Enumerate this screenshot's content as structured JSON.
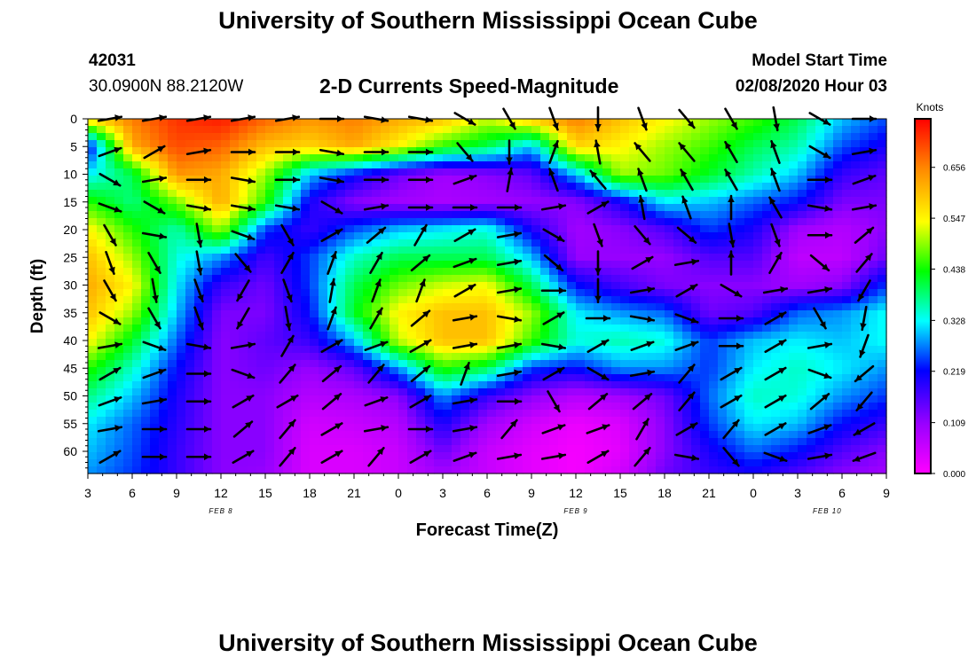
{
  "header": {
    "title": "University of Southern Mississippi Ocean Cube",
    "station_id": "42031",
    "location": "30.0900N 88.2120W",
    "product": "2-D Currents Speed-Magnitude",
    "model_label": "Model Start Time",
    "model_time": "02/08/2020 Hour 03"
  },
  "footer": {
    "title": "University of Southern Mississippi Ocean Cube"
  },
  "chart_data": {
    "type": "heatmap",
    "title": "2-D Currents Speed-Magnitude",
    "xlabel": "Forecast Time(Z)",
    "ylabel": "Depth (ft)",
    "x_tick_labels": [
      "3",
      "6",
      "9",
      "12",
      "15",
      "18",
      "21",
      "0",
      "3",
      "6",
      "9",
      "12",
      "15",
      "18",
      "21",
      "0",
      "3",
      "6",
      "9"
    ],
    "x_range_hours": [
      0,
      54
    ],
    "date_labels": [
      {
        "text": "FEB 8",
        "hour": 9
      },
      {
        "text": "FEB 9",
        "hour": 33
      },
      {
        "text": "FEB 10",
        "hour": 50
      }
    ],
    "y_tick_labels": [
      "0",
      "5",
      "10",
      "15",
      "20",
      "25",
      "30",
      "35",
      "40",
      "45",
      "50",
      "55",
      "60"
    ],
    "ylim": [
      64,
      0
    ],
    "colorbar": {
      "title": "Knots",
      "ticks": [
        "0.656",
        "0.547",
        "0.438",
        "0.328",
        "0.219",
        "0.109",
        "0.000"
      ],
      "range": [
        0.0,
        0.76
      ],
      "colors": [
        "#ff00ff",
        "#9900ff",
        "#0000ff",
        "#00ffff",
        "#00ff00",
        "#ffff00",
        "#ff8800",
        "#ff0000"
      ]
    },
    "speed_grid": {
      "x_hours": [
        0,
        3,
        6,
        9,
        12,
        15,
        18,
        21,
        24,
        27,
        30,
        33,
        36,
        39,
        42,
        45,
        48,
        51,
        54
      ],
      "depths_ft": [
        0,
        5,
        10,
        15,
        20,
        25,
        30,
        35,
        40,
        45,
        50,
        55,
        60,
        64
      ],
      "values": [
        [
          0.58,
          0.66,
          0.72,
          0.74,
          0.68,
          0.64,
          0.66,
          0.62,
          0.6,
          0.52,
          0.6,
          0.66,
          0.6,
          0.55,
          0.5,
          0.46,
          0.4,
          0.3,
          0.25
        ],
        [
          0.2,
          0.62,
          0.7,
          0.68,
          0.6,
          0.58,
          0.62,
          0.55,
          0.45,
          0.4,
          0.3,
          0.58,
          0.55,
          0.5,
          0.46,
          0.4,
          0.36,
          0.25,
          0.2
        ],
        [
          0.32,
          0.4,
          0.64,
          0.62,
          0.5,
          0.3,
          0.22,
          0.14,
          0.1,
          0.12,
          0.15,
          0.3,
          0.5,
          0.48,
          0.42,
          0.36,
          0.3,
          0.18,
          0.15
        ],
        [
          0.45,
          0.38,
          0.48,
          0.62,
          0.45,
          0.2,
          0.12,
          0.1,
          0.09,
          0.1,
          0.11,
          0.12,
          0.2,
          0.32,
          0.3,
          0.26,
          0.22,
          0.13,
          0.13
        ],
        [
          0.55,
          0.45,
          0.36,
          0.5,
          0.24,
          0.18,
          0.25,
          0.3,
          0.32,
          0.34,
          0.2,
          0.1,
          0.12,
          0.16,
          0.24,
          0.2,
          0.1,
          0.08,
          0.12
        ],
        [
          0.6,
          0.5,
          0.34,
          0.28,
          0.17,
          0.24,
          0.35,
          0.4,
          0.4,
          0.4,
          0.3,
          0.11,
          0.11,
          0.11,
          0.16,
          0.16,
          0.07,
          0.07,
          0.14
        ],
        [
          0.62,
          0.55,
          0.32,
          0.18,
          0.14,
          0.24,
          0.4,
          0.48,
          0.52,
          0.54,
          0.4,
          0.22,
          0.17,
          0.13,
          0.12,
          0.12,
          0.1,
          0.12,
          0.24
        ],
        [
          0.6,
          0.5,
          0.3,
          0.13,
          0.13,
          0.22,
          0.42,
          0.55,
          0.6,
          0.6,
          0.5,
          0.32,
          0.28,
          0.26,
          0.14,
          0.16,
          0.26,
          0.28,
          0.33
        ],
        [
          0.55,
          0.42,
          0.26,
          0.12,
          0.15,
          0.18,
          0.3,
          0.52,
          0.6,
          0.6,
          0.46,
          0.34,
          0.36,
          0.34,
          0.24,
          0.3,
          0.32,
          0.3,
          0.33
        ],
        [
          0.45,
          0.35,
          0.22,
          0.12,
          0.14,
          0.11,
          0.15,
          0.28,
          0.45,
          0.4,
          0.24,
          0.22,
          0.28,
          0.28,
          0.24,
          0.32,
          0.35,
          0.32,
          0.28
        ],
        [
          0.38,
          0.3,
          0.2,
          0.12,
          0.12,
          0.08,
          0.09,
          0.12,
          0.28,
          0.18,
          0.12,
          0.08,
          0.1,
          0.14,
          0.26,
          0.35,
          0.34,
          0.28,
          0.24
        ],
        [
          0.32,
          0.26,
          0.19,
          0.12,
          0.12,
          0.05,
          0.06,
          0.08,
          0.2,
          0.1,
          0.05,
          0.02,
          0.04,
          0.12,
          0.24,
          0.32,
          0.3,
          0.22,
          0.18
        ],
        [
          0.3,
          0.25,
          0.18,
          0.12,
          0.12,
          0.04,
          0.04,
          0.06,
          0.14,
          0.06,
          0.03,
          0.01,
          0.03,
          0.12,
          0.2,
          0.26,
          0.22,
          0.16,
          0.12
        ],
        [
          0.28,
          0.24,
          0.18,
          0.12,
          0.11,
          0.04,
          0.04,
          0.06,
          0.1,
          0.06,
          0.03,
          0.01,
          0.05,
          0.14,
          0.18,
          0.2,
          0.16,
          0.12,
          0.1
        ]
      ]
    },
    "current_vectors": {
      "x_hours": [
        1.5,
        4.5,
        7.5,
        10.5,
        13.5,
        16.5,
        19.5,
        22.5,
        25.5,
        28.5,
        31.5,
        34.5,
        37.5,
        40.5,
        43.5,
        46.5,
        49.5,
        52.5
      ],
      "depths_ft": [
        0,
        6,
        11,
        16,
        21,
        26,
        31,
        36,
        41,
        46,
        51,
        56,
        61
      ],
      "direction_deg": [
        [
          80,
          80,
          80,
          80,
          80,
          90,
          100,
          100,
          120,
          150,
          160,
          180,
          160,
          140,
          150,
          170,
          120,
          90
        ],
        [
          70,
          60,
          80,
          90,
          90,
          100,
          90,
          90,
          140,
          180,
          20,
          350,
          320,
          320,
          330,
          340,
          120,
          80
        ],
        [
          120,
          80,
          90,
          100,
          90,
          100,
          90,
          90,
          70,
          10,
          340,
          320,
          340,
          330,
          330,
          340,
          90,
          70
        ],
        [
          110,
          120,
          100,
          100,
          100,
          120,
          80,
          90,
          90,
          90,
          80,
          60,
          350,
          340,
          0,
          330,
          100,
          80
        ],
        [
          150,
          100,
          170,
          110,
          150,
          60,
          50,
          30,
          60,
          80,
          120,
          160,
          140,
          130,
          170,
          160,
          90,
          50
        ],
        [
          160,
          150,
          170,
          140,
          30,
          20,
          30,
          50,
          70,
          80,
          130,
          180,
          60,
          80,
          0,
          30,
          130,
          40
        ],
        [
          150,
          170,
          160,
          210,
          160,
          10,
          20,
          20,
          60,
          80,
          90,
          180,
          80,
          60,
          120,
          80,
          80,
          210
        ],
        [
          120,
          150,
          160,
          210,
          170,
          20,
          30,
          50,
          80,
          100,
          60,
          90,
          100,
          110,
          90,
          60,
          150,
          190
        ],
        [
          80,
          110,
          100,
          80,
          30,
          60,
          70,
          60,
          80,
          80,
          100,
          60,
          70,
          70,
          90,
          60,
          80,
          200
        ],
        [
          60,
          70,
          90,
          110,
          40,
          50,
          40,
          50,
          20,
          80,
          60,
          120,
          80,
          40,
          60,
          60,
          110,
          230
        ],
        [
          70,
          80,
          90,
          60,
          60,
          50,
          70,
          60,
          80,
          90,
          150,
          50,
          50,
          40,
          60,
          60,
          50,
          220
        ],
        [
          80,
          90,
          90,
          50,
          40,
          60,
          80,
          90,
          80,
          40,
          70,
          70,
          30,
          60,
          40,
          60,
          70,
          240
        ],
        [
          60,
          90,
          90,
          60,
          40,
          60,
          40,
          60,
          70,
          80,
          80,
          60,
          40,
          100,
          140,
          110,
          80,
          250
        ]
      ]
    }
  }
}
